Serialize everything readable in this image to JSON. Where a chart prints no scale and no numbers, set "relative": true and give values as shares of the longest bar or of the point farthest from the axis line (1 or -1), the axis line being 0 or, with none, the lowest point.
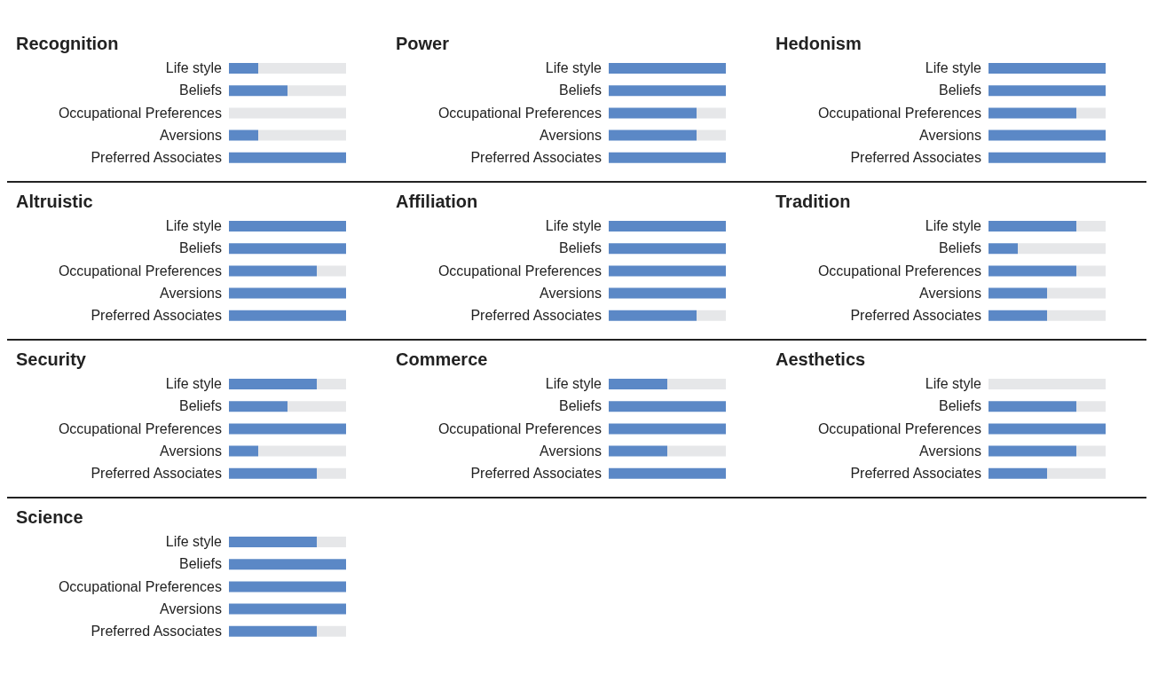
{
  "chart_data": [
    {
      "type": "bar",
      "title": "Recognition",
      "orientation": "horizontal",
      "stacked": true,
      "relative": true,
      "categories": [
        "Life style",
        "Beliefs",
        "Occupational Preferences",
        "Aversions",
        "Preferred Associates"
      ],
      "series": [
        {
          "color": "#5b88c6",
          "values": [
            0.25,
            0.5,
            0,
            0.25,
            1
          ]
        },
        {
          "color": "#e6e7e9",
          "values": [
            0.75,
            0.5,
            1,
            0.75,
            0
          ]
        }
      ]
    },
    {
      "type": "bar",
      "title": "Power",
      "orientation": "horizontal",
      "stacked": true,
      "relative": true,
      "categories": [
        "Life style",
        "Beliefs",
        "Occupational Preferences",
        "Aversions",
        "Preferred Associates"
      ],
      "series": [
        {
          "color": "#5b88c6",
          "values": [
            1,
            1,
            0.75,
            0.75,
            1
          ]
        },
        {
          "color": "#e6e7e9",
          "values": [
            0,
            0,
            0.25,
            0.25,
            0
          ]
        }
      ]
    },
    {
      "type": "bar",
      "title": "Hedonism",
      "orientation": "horizontal",
      "stacked": true,
      "relative": true,
      "categories": [
        "Life style",
        "Beliefs",
        "Occupational Preferences",
        "Aversions",
        "Preferred Associates"
      ],
      "series": [
        {
          "color": "#5b88c6",
          "values": [
            1,
            1,
            0.75,
            1,
            1
          ]
        },
        {
          "color": "#e6e7e9",
          "values": [
            0,
            0,
            0.25,
            0,
            0
          ]
        }
      ]
    },
    {
      "type": "bar",
      "title": "Altruistic",
      "orientation": "horizontal",
      "stacked": true,
      "relative": true,
      "categories": [
        "Life style",
        "Beliefs",
        "Occupational Preferences",
        "Aversions",
        "Preferred Associates"
      ],
      "series": [
        {
          "color": "#5b88c6",
          "values": [
            1,
            1,
            0.75,
            1,
            1
          ]
        },
        {
          "color": "#e6e7e9",
          "values": [
            0,
            0,
            0.25,
            0,
            0
          ]
        }
      ]
    },
    {
      "type": "bar",
      "title": "Affiliation",
      "orientation": "horizontal",
      "stacked": true,
      "relative": true,
      "categories": [
        "Life style",
        "Beliefs",
        "Occupational Preferences",
        "Aversions",
        "Preferred Associates"
      ],
      "series": [
        {
          "color": "#5b88c6",
          "values": [
            1,
            1,
            1,
            1,
            0.75
          ]
        },
        {
          "color": "#e6e7e9",
          "values": [
            0,
            0,
            0,
            0,
            0.25
          ]
        }
      ]
    },
    {
      "type": "bar",
      "title": "Tradition",
      "orientation": "horizontal",
      "stacked": true,
      "relative": true,
      "categories": [
        "Life style",
        "Beliefs",
        "Occupational Preferences",
        "Aversions",
        "Preferred Associates"
      ],
      "series": [
        {
          "color": "#5b88c6",
          "values": [
            0.75,
            0.25,
            0.75,
            0.5,
            0.5
          ]
        },
        {
          "color": "#e6e7e9",
          "values": [
            0.25,
            0.75,
            0.25,
            0.5,
            0.5
          ]
        }
      ]
    },
    {
      "type": "bar",
      "title": "Security",
      "orientation": "horizontal",
      "stacked": true,
      "relative": true,
      "categories": [
        "Life style",
        "Beliefs",
        "Occupational Preferences",
        "Aversions",
        "Preferred Associates"
      ],
      "series": [
        {
          "color": "#5b88c6",
          "values": [
            0.75,
            0.5,
            1,
            0.25,
            0.75
          ]
        },
        {
          "color": "#e6e7e9",
          "values": [
            0.25,
            0.5,
            0,
            0.75,
            0.25
          ]
        }
      ]
    },
    {
      "type": "bar",
      "title": "Commerce",
      "orientation": "horizontal",
      "stacked": true,
      "relative": true,
      "categories": [
        "Life style",
        "Beliefs",
        "Occupational Preferences",
        "Aversions",
        "Preferred Associates"
      ],
      "series": [
        {
          "color": "#5b88c6",
          "values": [
            0.5,
            1,
            1,
            0.5,
            1
          ]
        },
        {
          "color": "#e6e7e9",
          "values": [
            0.5,
            0,
            0,
            0.5,
            0
          ]
        }
      ]
    },
    {
      "type": "bar",
      "title": "Aesthetics",
      "orientation": "horizontal",
      "stacked": true,
      "relative": true,
      "categories": [
        "Life style",
        "Beliefs",
        "Occupational Preferences",
        "Aversions",
        "Preferred Associates"
      ],
      "series": [
        {
          "color": "#5b88c6",
          "values": [
            0,
            0.75,
            1,
            0.75,
            0.5
          ]
        },
        {
          "color": "#e6e7e9",
          "values": [
            1,
            0.25,
            0,
            0.25,
            0.5
          ]
        }
      ]
    },
    {
      "type": "bar",
      "title": "Science",
      "orientation": "horizontal",
      "stacked": true,
      "relative": true,
      "categories": [
        "Life style",
        "Beliefs",
        "Occupational Preferences",
        "Aversions",
        "Preferred Associates"
      ],
      "series": [
        {
          "color": "#5b88c6",
          "values": [
            0.75,
            1,
            1,
            1,
            0.75
          ]
        },
        {
          "color": "#e6e7e9",
          "values": [
            0.25,
            0,
            0,
            0,
            0.25
          ]
        }
      ]
    }
  ]
}
